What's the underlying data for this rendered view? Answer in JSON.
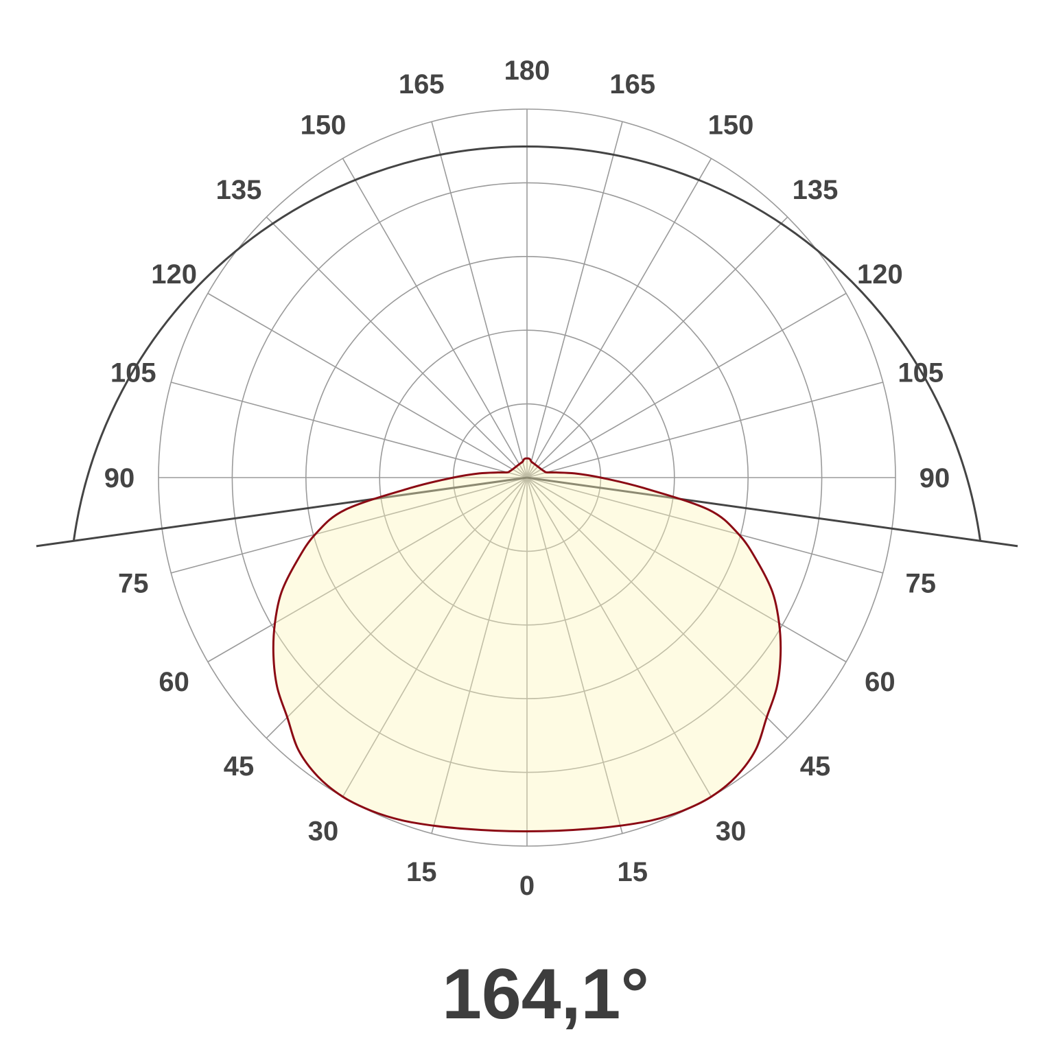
{
  "chart_data": {
    "type": "polar",
    "title": "164,1°",
    "angle_unit": "degrees from nadir",
    "angular_tick_labels": [
      "0",
      "15",
      "30",
      "45",
      "60",
      "75",
      "90",
      "105",
      "120",
      "135",
      "150",
      "165",
      "180"
    ],
    "radial_rings": 5,
    "radial_tick_labels": [],
    "grid": true,
    "symmetric": true,
    "beam_angle": 164.1,
    "series": [
      {
        "angles": [
          0,
          5,
          10,
          15,
          20,
          25,
          30,
          35,
          40,
          45,
          50,
          55,
          60,
          65,
          70,
          75,
          80,
          85,
          90,
          95,
          100,
          105,
          110,
          120,
          135,
          150,
          165,
          170,
          175,
          180
        ],
        "values": [
          0.96,
          0.962,
          0.968,
          0.978,
          0.99,
          0.998,
          1.0,
          0.99,
          0.965,
          0.92,
          0.885,
          0.84,
          0.79,
          0.735,
          0.665,
          0.595,
          0.5,
          0.315,
          0.2,
          0.13,
          0.08,
          0.055,
          0.05,
          0.045,
          0.042,
          0.042,
          0.045,
          0.05,
          0.052,
          0.052
        ]
      }
    ],
    "colors": {
      "grid": "#9a9a9a",
      "curve": "#8b0a14",
      "fill": "#fcf5b8",
      "beam": "#444444",
      "text": "#444444"
    }
  }
}
